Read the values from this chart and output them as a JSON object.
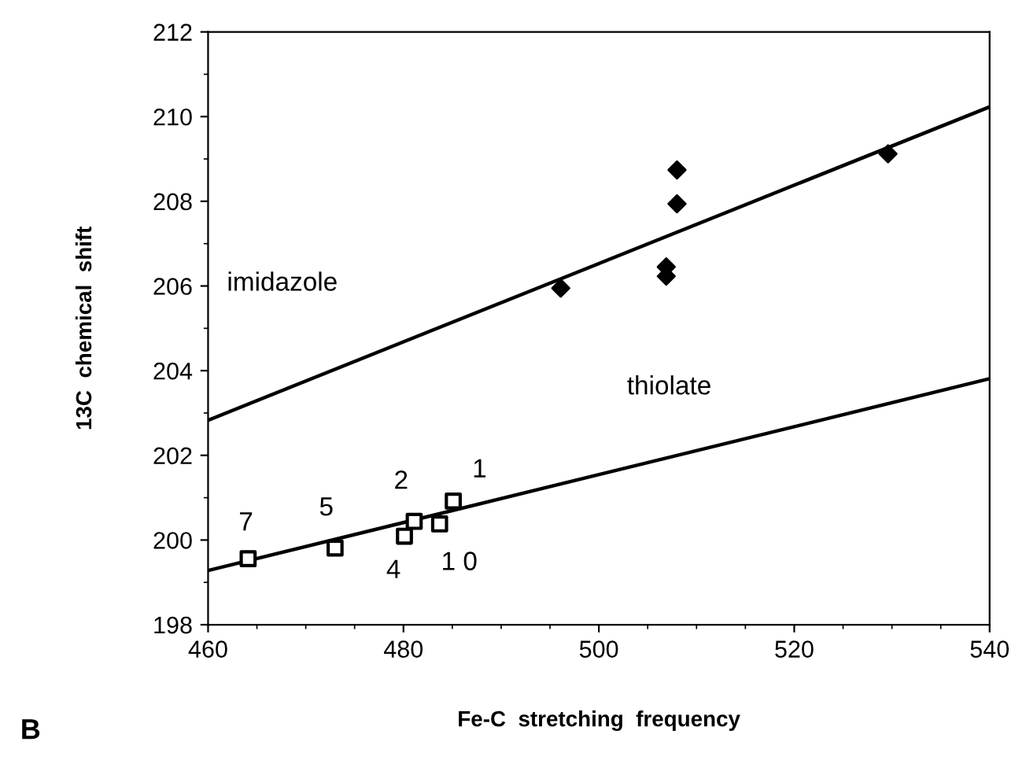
{
  "chart_data": {
    "type": "scatter",
    "xlabel": "Fe-C  stretching  frequency",
    "ylabel": "13C  chemical  shift",
    "xlim": [
      460,
      540
    ],
    "xticks": [
      460,
      480,
      500,
      520,
      540
    ],
    "ylim": [
      198,
      212
    ],
    "yticks": [
      198,
      200,
      202,
      204,
      206,
      208,
      210,
      212
    ],
    "grid": false,
    "legend": false,
    "series": [
      {
        "marker": "diamond",
        "color": "#000000",
        "x": [
          496.1,
          508.0,
          508.0,
          506.9,
          506.9,
          529.6
        ],
        "values": [
          205.95,
          208.74,
          207.94,
          206.45,
          206.23,
          209.12
        ]
      },
      {
        "marker": "square",
        "color": "#000000",
        "x": [
          464.1,
          473.0,
          480.1,
          481.1,
          483.7,
          485.1
        ],
        "values": [
          199.56,
          199.81,
          200.09,
          200.44,
          200.38,
          200.92
        ]
      },
      {
        "type": "line",
        "marker": "none",
        "color": "#000000",
        "x": [
          460,
          540
        ],
        "values": [
          202.83,
          210.23
        ]
      },
      {
        "type": "line",
        "marker": "none",
        "color": "#000000",
        "x": [
          460,
          540
        ],
        "values": [
          199.28,
          203.81
        ]
      }
    ],
    "annotations": [
      "imidazole",
      "thiolate",
      {
        "text": "7",
        "x": 464.1,
        "y": 199.56
      },
      {
        "text": "5",
        "x": 473.0,
        "y": 199.81
      },
      {
        "text": "2",
        "x": 481.1,
        "y": 200.44
      },
      {
        "text": "1",
        "x": 485.1,
        "y": 200.92
      },
      {
        "text": "4",
        "x": 480.1,
        "y": 200.09
      },
      {
        "text": "1 0",
        "x": 483.7,
        "y": 200.38
      },
      "B"
    ]
  }
}
